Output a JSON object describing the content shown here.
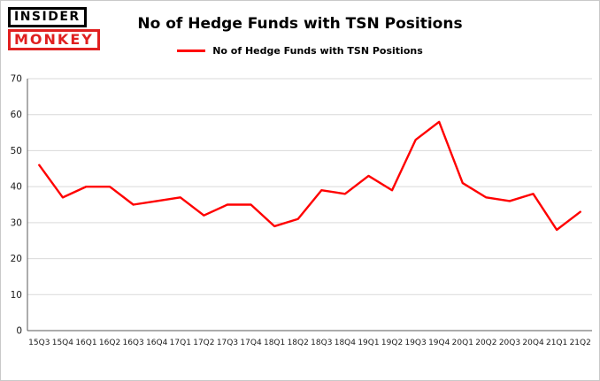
{
  "logo": {
    "top": "INSIDER",
    "bottom": "MONKEY"
  },
  "title": "No of Hedge Funds with TSN Positions",
  "legend": {
    "label": "No of Hedge Funds with TSN Positions"
  },
  "chart_data": {
    "type": "line",
    "title": "No of Hedge Funds with TSN Positions",
    "categories": [
      "15Q3",
      "15Q4",
      "16Q1",
      "16Q2",
      "16Q3",
      "16Q4",
      "17Q1",
      "17Q2",
      "17Q3",
      "17Q4",
      "18Q1",
      "18Q2",
      "18Q3",
      "18Q4",
      "19Q1",
      "19Q2",
      "19Q3",
      "19Q4",
      "20Q1",
      "20Q2",
      "20Q3",
      "20Q4",
      "21Q1",
      "21Q2"
    ],
    "values": [
      46,
      37,
      40,
      40,
      35,
      36,
      37,
      32,
      35,
      35,
      29,
      31,
      39,
      38,
      43,
      39,
      53,
      58,
      41,
      37,
      36,
      38,
      28,
      33
    ],
    "xlabel": "",
    "ylabel": "",
    "ylim": [
      0,
      70
    ],
    "yticks": [
      0,
      10,
      20,
      30,
      40,
      50,
      60,
      70
    ],
    "grid": true,
    "legend_position": "top",
    "line_color": "#ff0000",
    "grid_color": "#d9d9d9",
    "axis_color": "#595959",
    "tick_label_color": "#1a1a1a"
  }
}
